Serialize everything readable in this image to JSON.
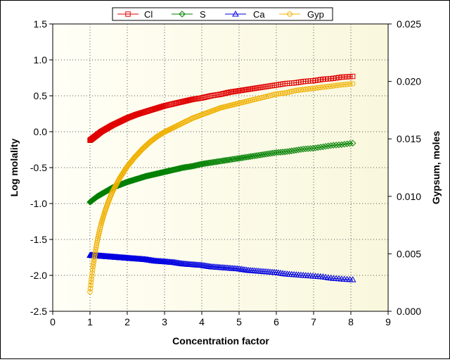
{
  "chart_data": {
    "type": "scatter",
    "xlabel": "Concentration factor",
    "ylabel": "Log molality",
    "y2label": "Gypsum, moles",
    "xlim": [
      0,
      9
    ],
    "ylim": [
      -2.5,
      1.5
    ],
    "y2lim": [
      0.0,
      0.025
    ],
    "x_ticks": [
      "0",
      "1",
      "2",
      "3",
      "4",
      "5",
      "6",
      "7",
      "8",
      "9"
    ],
    "y_ticks": [
      "-2.5",
      "-2.0",
      "-1.5",
      "-1.0",
      "-0.5",
      "0.0",
      "0.5",
      "1.0",
      "1.5"
    ],
    "y2_ticks": [
      "0.000",
      "0.005",
      "0.010",
      "0.015",
      "0.020",
      "0.025"
    ],
    "grid": true,
    "legend_position": "top",
    "series": [
      {
        "name": "Cl",
        "axis": "left",
        "marker": "square",
        "color": "#e00000",
        "x": [
          1.0,
          1.1,
          1.2,
          1.3,
          1.4,
          1.5,
          1.6,
          1.8,
          2.0,
          2.25,
          2.5,
          2.75,
          3.0,
          3.25,
          3.5,
          3.75,
          4.0,
          4.25,
          4.5,
          4.75,
          5.0,
          5.25,
          5.5,
          5.75,
          6.0,
          6.25,
          6.5,
          6.75,
          7.0,
          7.25,
          7.5,
          7.75,
          8.05
        ],
        "y": [
          -0.12,
          -0.08,
          -0.04,
          0.0,
          0.03,
          0.06,
          0.09,
          0.14,
          0.19,
          0.24,
          0.28,
          0.32,
          0.36,
          0.39,
          0.42,
          0.45,
          0.47,
          0.5,
          0.52,
          0.55,
          0.57,
          0.59,
          0.61,
          0.63,
          0.65,
          0.67,
          0.68,
          0.7,
          0.71,
          0.73,
          0.74,
          0.76,
          0.77
        ]
      },
      {
        "name": "S",
        "axis": "left",
        "marker": "diamond",
        "color": "#008000",
        "x": [
          1.0,
          1.1,
          1.2,
          1.3,
          1.4,
          1.5,
          1.6,
          1.8,
          2.0,
          2.25,
          2.5,
          2.75,
          3.0,
          3.25,
          3.5,
          3.75,
          4.0,
          4.25,
          4.5,
          4.75,
          5.0,
          5.25,
          5.5,
          5.75,
          6.0,
          6.25,
          6.5,
          6.75,
          7.0,
          7.25,
          7.5,
          7.75,
          8.05
        ],
        "y": [
          -0.98,
          -0.94,
          -0.9,
          -0.87,
          -0.84,
          -0.81,
          -0.78,
          -0.74,
          -0.7,
          -0.66,
          -0.62,
          -0.59,
          -0.56,
          -0.53,
          -0.5,
          -0.48,
          -0.45,
          -0.43,
          -0.41,
          -0.39,
          -0.37,
          -0.35,
          -0.33,
          -0.31,
          -0.29,
          -0.28,
          -0.26,
          -0.24,
          -0.23,
          -0.21,
          -0.19,
          -0.18,
          -0.16
        ]
      },
      {
        "name": "Ca",
        "axis": "left",
        "marker": "triangle",
        "color": "#0000e0",
        "x": [
          1.0,
          1.25,
          1.5,
          1.75,
          2.0,
          2.25,
          2.5,
          2.75,
          3.0,
          3.25,
          3.5,
          3.75,
          4.0,
          4.25,
          4.5,
          4.75,
          5.0,
          5.25,
          5.5,
          5.75,
          6.0,
          6.25,
          6.5,
          6.75,
          7.0,
          7.25,
          7.5,
          7.75,
          8.05
        ],
        "y": [
          -1.72,
          -1.73,
          -1.74,
          -1.75,
          -1.76,
          -1.77,
          -1.78,
          -1.8,
          -1.81,
          -1.82,
          -1.84,
          -1.85,
          -1.86,
          -1.88,
          -1.89,
          -1.9,
          -1.91,
          -1.93,
          -1.94,
          -1.95,
          -1.96,
          -1.98,
          -1.99,
          -2.0,
          -2.01,
          -2.02,
          -2.04,
          -2.05,
          -2.06
        ]
      },
      {
        "name": "Gyp",
        "axis": "right",
        "marker": "circle",
        "color": "#f0b000",
        "x": [
          1.0,
          1.02,
          1.05,
          1.08,
          1.12,
          1.16,
          1.2,
          1.25,
          1.3,
          1.4,
          1.5,
          1.6,
          1.7,
          1.8,
          2.0,
          2.2,
          2.4,
          2.6,
          2.8,
          3.0,
          3.25,
          3.5,
          3.75,
          4.0,
          4.25,
          4.5,
          4.75,
          5.0,
          5.25,
          5.5,
          5.75,
          6.0,
          6.25,
          6.5,
          6.75,
          7.0,
          7.25,
          7.5,
          7.75,
          8.05
        ],
        "y": [
          0.0017,
          0.0023,
          0.0031,
          0.0039,
          0.0047,
          0.0055,
          0.0062,
          0.0069,
          0.0076,
          0.0087,
          0.0096,
          0.0104,
          0.011,
          0.0116,
          0.0126,
          0.0134,
          0.0141,
          0.0147,
          0.0152,
          0.0156,
          0.016,
          0.0164,
          0.0168,
          0.0171,
          0.0174,
          0.0177,
          0.0179,
          0.0181,
          0.0183,
          0.0185,
          0.0187,
          0.0189,
          0.019,
          0.0192,
          0.0193,
          0.0194,
          0.0195,
          0.0196,
          0.0197,
          0.0198
        ]
      }
    ]
  }
}
